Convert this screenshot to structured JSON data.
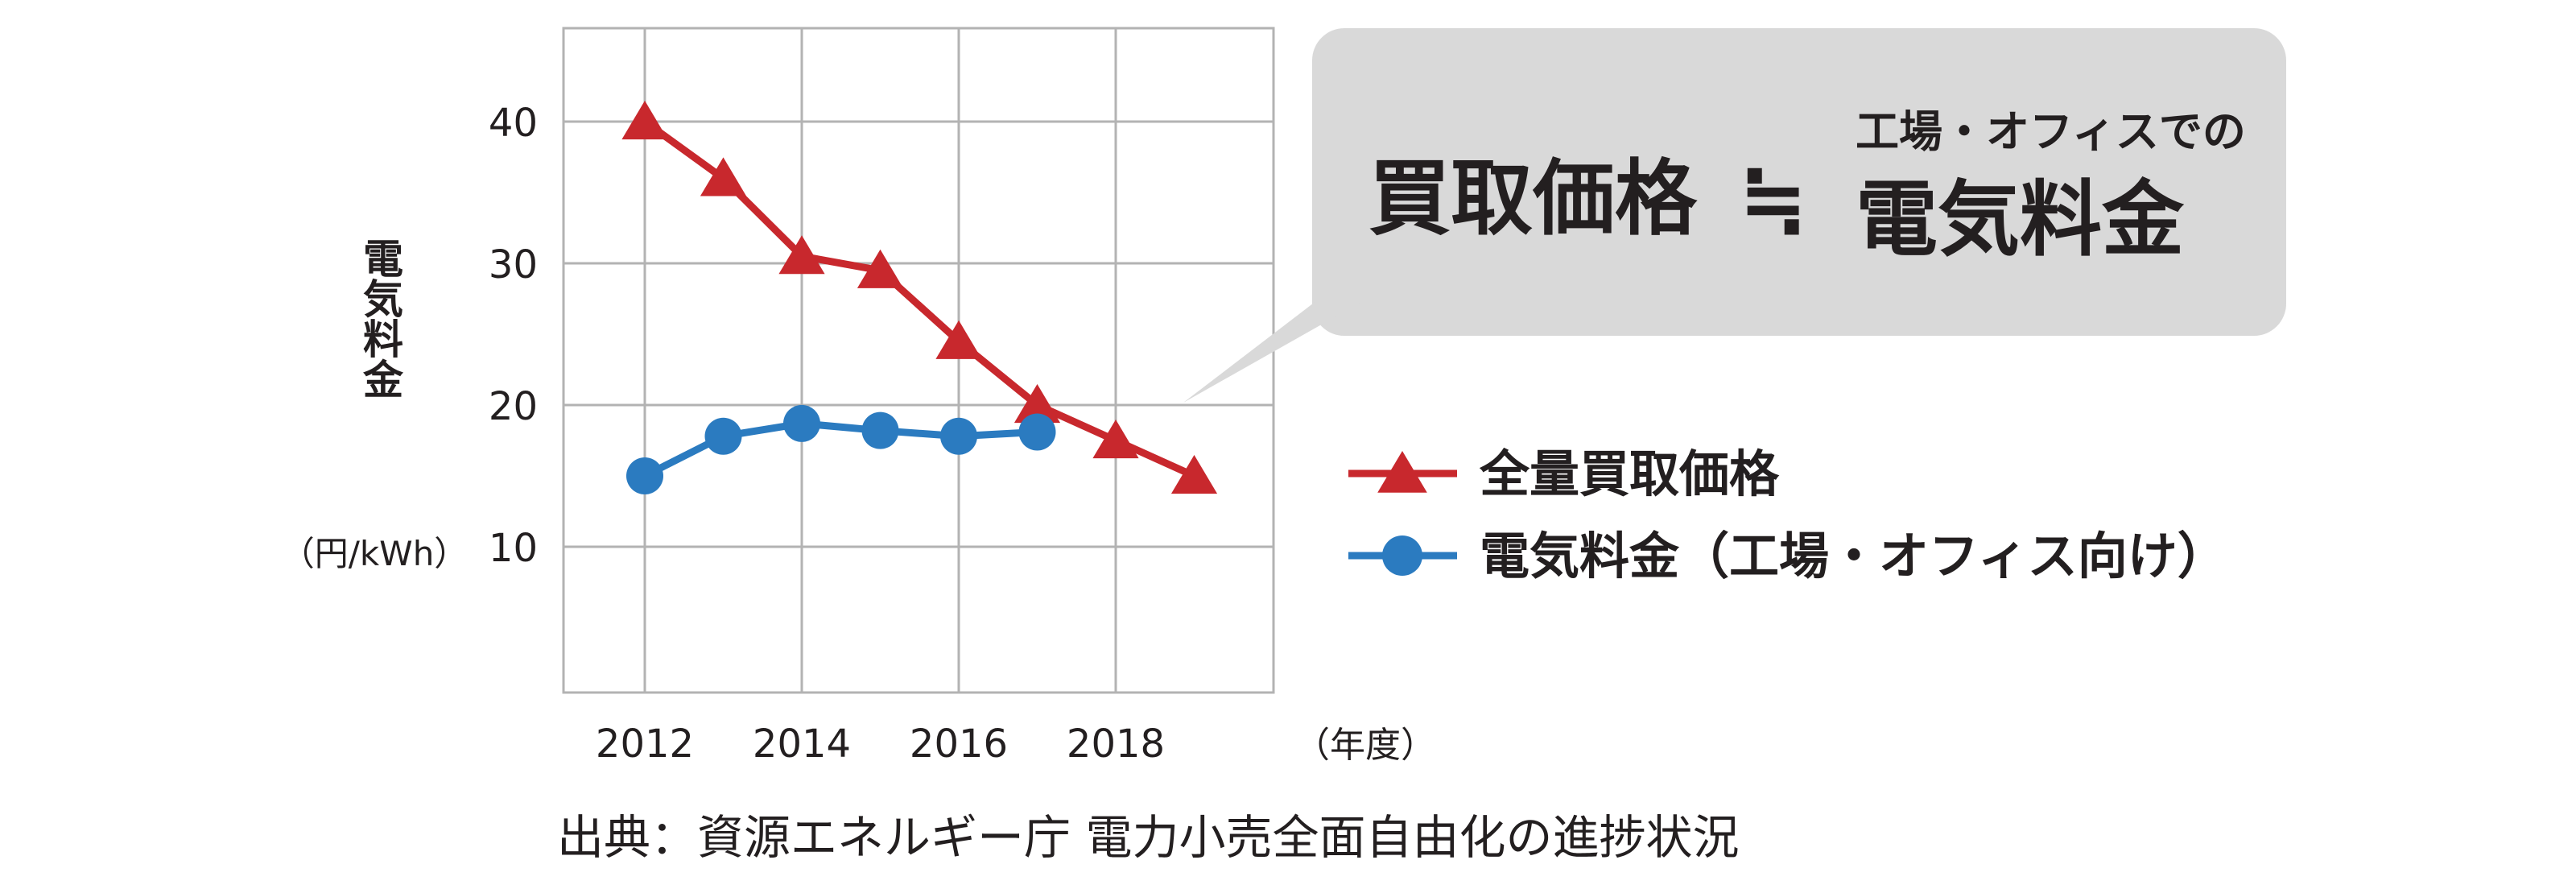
{
  "chart_data": {
    "type": "line",
    "title": "",
    "x": [
      2012,
      2013,
      2014,
      2015,
      2016,
      2017,
      2018,
      2019
    ],
    "x_tick_labels": [
      "2012",
      "2014",
      "2016",
      "2018"
    ],
    "x_unit": "（年度）",
    "xlim": [
      2012,
      2019
    ],
    "ylim": [
      0,
      47
    ],
    "y_ticks": [
      10,
      20,
      30,
      40
    ],
    "y_tick_labels": [
      "10",
      "20",
      "30",
      "40"
    ],
    "ylabel": "電気料金",
    "ylabel_unit": "（円/kWh）",
    "grid": true,
    "series": [
      {
        "name": "全量買取価格",
        "color": "#c8282d",
        "marker": "triangle",
        "x": [
          2012,
          2013,
          2014,
          2015,
          2016,
          2017,
          2018,
          2019
        ],
        "values": [
          40,
          36,
          30.5,
          29.5,
          24.5,
          20,
          17.5,
          15
        ]
      },
      {
        "name": "電気料金（工場・オフィス向け）",
        "color": "#2b7bc0",
        "marker": "circle",
        "x": [
          2012,
          2013,
          2014,
          2015,
          2016,
          2017
        ],
        "values": [
          15,
          17.8,
          18.7,
          18.2,
          17.8,
          18.1
        ]
      }
    ],
    "legend_position": "right",
    "callout": {
      "main": "買取価格",
      "symbol": "≒",
      "sub": "工場・オフィスでの",
      "target": "電気料金",
      "background": "#d9d9d9"
    },
    "source": "出典：資源エネルギー庁 電力小売全面自由化の進捗状況"
  }
}
